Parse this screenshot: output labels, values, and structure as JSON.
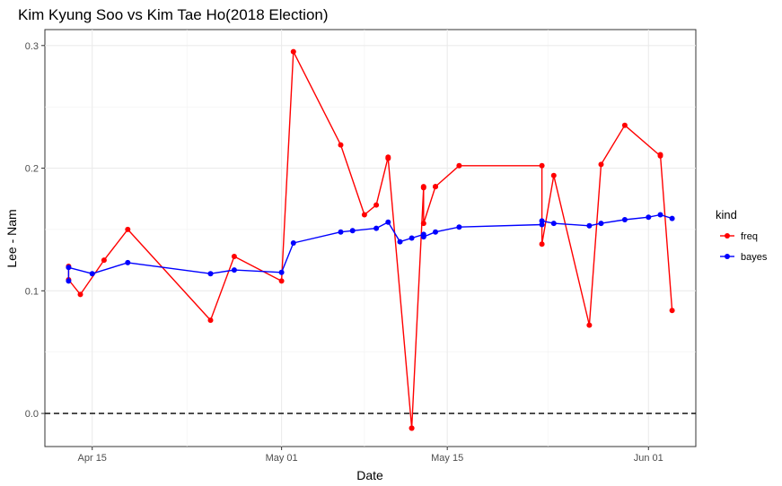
{
  "chart_data": {
    "type": "line",
    "title": "Kim Kyung Soo vs Kim Tae Ho(2018 Election)",
    "xlabel": "Date",
    "ylabel": "Lee - Nam",
    "x_range": [
      "2018-04-11",
      "2018-06-05"
    ],
    "ylim": [
      -0.027,
      0.313
    ],
    "x_ticks": [
      {
        "date": "2018-04-15",
        "label": "Apr 15"
      },
      {
        "date": "2018-05-01",
        "label": "May 01"
      },
      {
        "date": "2018-05-15",
        "label": "May 15"
      },
      {
        "date": "2018-06-01",
        "label": "Jun 01"
      }
    ],
    "y_ticks": [
      0.0,
      0.1,
      0.2,
      0.3
    ],
    "y_tick_labels": [
      "0.0",
      "0.1",
      "0.2",
      "0.3"
    ],
    "grid": true,
    "reference_line": {
      "y": 0,
      "style": "dashed"
    },
    "legend": {
      "title": "kind",
      "position": "right"
    },
    "series": [
      {
        "name": "freq",
        "color": "#ff0000",
        "points": [
          [
            "2018-04-13",
            0.12
          ],
          [
            "2018-04-13",
            0.109
          ],
          [
            "2018-04-14",
            0.097
          ],
          [
            "2018-04-16",
            0.125
          ],
          [
            "2018-04-18",
            0.15
          ],
          [
            "2018-04-25",
            0.076
          ],
          [
            "2018-04-27",
            0.128
          ],
          [
            "2018-05-01",
            0.108
          ],
          [
            "2018-05-02",
            0.295
          ],
          [
            "2018-05-06",
            0.219
          ],
          [
            "2018-05-08",
            0.162
          ],
          [
            "2018-05-09",
            0.17
          ],
          [
            "2018-05-10",
            0.209
          ],
          [
            "2018-05-10",
            0.208
          ],
          [
            "2018-05-12",
            -0.012
          ],
          [
            "2018-05-12",
            -0.012
          ],
          [
            "2018-05-13",
            0.184
          ],
          [
            "2018-05-13",
            0.185
          ],
          [
            "2018-05-13",
            0.155
          ],
          [
            "2018-05-14",
            0.185
          ],
          [
            "2018-05-14",
            0.185
          ],
          [
            "2018-05-16",
            0.202
          ],
          [
            "2018-05-23",
            0.202
          ],
          [
            "2018-05-23",
            0.138
          ],
          [
            "2018-05-24",
            0.194
          ],
          [
            "2018-05-27",
            0.072
          ],
          [
            "2018-05-28",
            0.203
          ],
          [
            "2018-05-30",
            0.235
          ],
          [
            "2018-06-02",
            0.21
          ],
          [
            "2018-06-02",
            0.211
          ],
          [
            "2018-06-03",
            0.084
          ]
        ]
      },
      {
        "name": "bayes",
        "color": "#0000ff",
        "points": [
          [
            "2018-04-13",
            0.108
          ],
          [
            "2018-04-13",
            0.119
          ],
          [
            "2018-04-15",
            0.114
          ],
          [
            "2018-04-18",
            0.123
          ],
          [
            "2018-04-25",
            0.114
          ],
          [
            "2018-04-27",
            0.117
          ],
          [
            "2018-05-01",
            0.115
          ],
          [
            "2018-05-02",
            0.139
          ],
          [
            "2018-05-06",
            0.148
          ],
          [
            "2018-05-07",
            0.149
          ],
          [
            "2018-05-09",
            0.151
          ],
          [
            "2018-05-10",
            0.156
          ],
          [
            "2018-05-11",
            0.14
          ],
          [
            "2018-05-12",
            0.143
          ],
          [
            "2018-05-13",
            0.146
          ],
          [
            "2018-05-13",
            0.144
          ],
          [
            "2018-05-14",
            0.148
          ],
          [
            "2018-05-16",
            0.152
          ],
          [
            "2018-05-23",
            0.154
          ],
          [
            "2018-05-23",
            0.157
          ],
          [
            "2018-05-24",
            0.155
          ],
          [
            "2018-05-27",
            0.153
          ],
          [
            "2018-05-28",
            0.155
          ],
          [
            "2018-05-30",
            0.158
          ],
          [
            "2018-06-01",
            0.16
          ],
          [
            "2018-06-02",
            0.162
          ],
          [
            "2018-06-03",
            0.159
          ]
        ]
      }
    ]
  }
}
